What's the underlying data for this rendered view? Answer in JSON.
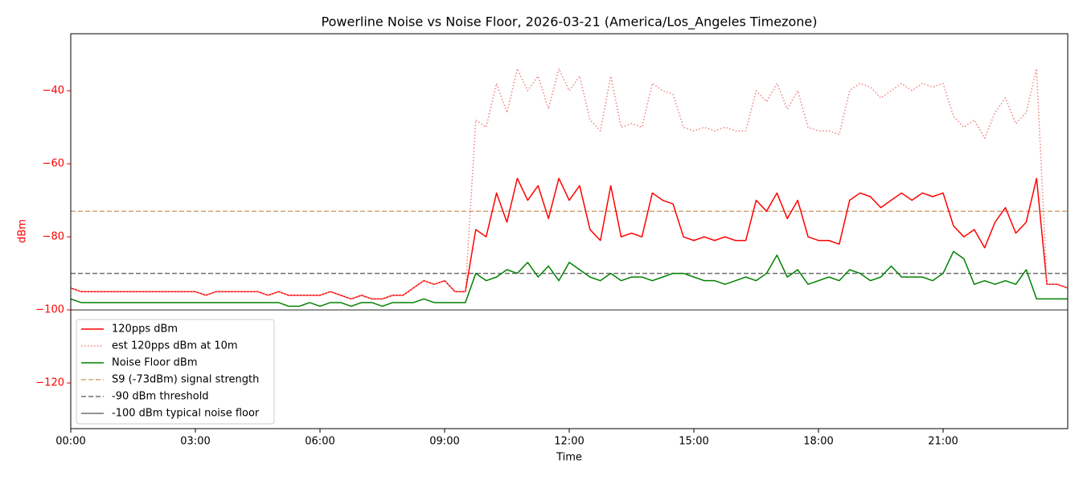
{
  "chart_data": {
    "type": "line",
    "title": "Powerline Noise vs Noise Floor, 2026-03-21 (America/Los_Angeles Timezone)",
    "x_label": "Time",
    "y_label": "dBm",
    "y_axis_color": "#ff0000",
    "xlim": [
      0,
      24
    ],
    "ylim": [
      -132.5,
      -24.4
    ],
    "xticks": [
      {
        "value": 0,
        "label": "00:00"
      },
      {
        "value": 3,
        "label": "03:00"
      },
      {
        "value": 6,
        "label": "06:00"
      },
      {
        "value": 9,
        "label": "09:00"
      },
      {
        "value": 12,
        "label": "12:00"
      },
      {
        "value": 15,
        "label": "15:00"
      },
      {
        "value": 18,
        "label": "18:00"
      },
      {
        "value": 21,
        "label": "21:00"
      }
    ],
    "yticks": [
      {
        "value": -120,
        "label": "−120"
      },
      {
        "value": -100,
        "label": "−100"
      },
      {
        "value": -80,
        "label": "−80"
      },
      {
        "value": -60,
        "label": "−60"
      },
      {
        "value": -40,
        "label": "−40"
      }
    ],
    "legend": "lower left",
    "x": [
      0,
      0.25,
      0.5,
      0.75,
      1,
      1.25,
      1.5,
      1.75,
      2,
      2.25,
      2.5,
      2.75,
      3,
      3.25,
      3.5,
      3.75,
      4,
      4.25,
      4.5,
      4.75,
      5,
      5.25,
      5.5,
      5.75,
      6,
      6.25,
      6.5,
      6.75,
      7,
      7.25,
      7.5,
      7.75,
      8,
      8.25,
      8.5,
      8.75,
      9,
      9.25,
      9.5,
      9.75,
      10,
      10.25,
      10.5,
      10.75,
      11,
      11.25,
      11.5,
      11.75,
      12,
      12.25,
      12.5,
      12.75,
      13,
      13.25,
      13.5,
      13.75,
      14,
      14.25,
      14.5,
      14.75,
      15,
      15.25,
      15.5,
      15.75,
      16,
      16.25,
      16.5,
      16.75,
      17,
      17.25,
      17.5,
      17.75,
      18,
      18.25,
      18.5,
      18.75,
      19,
      19.25,
      19.5,
      19.75,
      20,
      20.25,
      20.5,
      20.75,
      21,
      21.25,
      21.5,
      21.75,
      22,
      22.25,
      22.5,
      22.75,
      23,
      23.25,
      23.5,
      23.75,
      24
    ],
    "series": [
      {
        "name": "120pps dBm",
        "color": "#ff0000",
        "style": "solid",
        "values": [
          -94,
          -95,
          -95,
          -95,
          -95,
          -95,
          -95,
          -95,
          -95,
          -95,
          -95,
          -95,
          -95,
          -96,
          -95,
          -95,
          -95,
          -95,
          -95,
          -96,
          -95,
          -96,
          -96,
          -96,
          -96,
          -95,
          -96,
          -97,
          -96,
          -97,
          -97,
          -96,
          -96,
          -94,
          -92,
          -93,
          -92,
          -95,
          -95,
          -78,
          -80,
          -68,
          -76,
          -64,
          -70,
          -66,
          -75,
          -64,
          -70,
          -66,
          -78,
          -81,
          -66,
          -80,
          -79,
          -80,
          -68,
          -70,
          -71,
          -80,
          -81,
          -80,
          -81,
          -80,
          -81,
          -81,
          -70,
          -73,
          -68,
          -75,
          -70,
          -80,
          -81,
          -81,
          -82,
          -70,
          -68,
          -69,
          -72,
          -70,
          -68,
          -70,
          -68,
          -69,
          -68,
          -77,
          -80,
          -78,
          -83,
          -76,
          -72,
          -79,
          -76,
          -64,
          -93,
          -93,
          -94
        ]
      },
      {
        "name": "est 120pps dBm at 10m",
        "color": "#f08080",
        "style": "dotted",
        "values": [
          -94,
          -95,
          -95,
          -95,
          -95,
          -95,
          -95,
          -95,
          -95,
          -95,
          -95,
          -95,
          -95,
          -96,
          -95,
          -95,
          -95,
          -95,
          -95,
          -96,
          -95,
          -96,
          -96,
          -96,
          -96,
          -95,
          -96,
          -97,
          -96,
          -97,
          -97,
          -96,
          -96,
          -94,
          -92,
          -93,
          -92,
          -95,
          -95,
          -48,
          -50,
          -38,
          -46,
          -34,
          -40,
          -36,
          -45,
          -34,
          -40,
          -36,
          -48,
          -51,
          -36,
          -50,
          -49,
          -50,
          -38,
          -40,
          -41,
          -50,
          -51,
          -50,
          -51,
          -50,
          -51,
          -51,
          -40,
          -43,
          -38,
          -45,
          -40,
          -50,
          -51,
          -51,
          -52,
          -40,
          -38,
          -39,
          -42,
          -40,
          -38,
          -40,
          -38,
          -39,
          -38,
          -47,
          -50,
          -48,
          -53,
          -46,
          -42,
          -49,
          -46,
          -34,
          -93,
          -93,
          -94
        ]
      },
      {
        "name": "Noise Floor dBm",
        "color": "#008000",
        "style": "solid",
        "values": [
          -97,
          -98,
          -98,
          -98,
          -98,
          -98,
          -98,
          -98,
          -98,
          -98,
          -98,
          -98,
          -98,
          -98,
          -98,
          -98,
          -98,
          -98,
          -98,
          -98,
          -98,
          -99,
          -99,
          -98,
          -99,
          -98,
          -98,
          -99,
          -98,
          -98,
          -99,
          -98,
          -98,
          -98,
          -97,
          -98,
          -98,
          -98,
          -98,
          -90,
          -92,
          -91,
          -89,
          -90,
          -87,
          -91,
          -88,
          -92,
          -87,
          -89,
          -91,
          -92,
          -90,
          -92,
          -91,
          -91,
          -92,
          -91,
          -90,
          -90,
          -91,
          -92,
          -92,
          -93,
          -92,
          -91,
          -92,
          -90,
          -85,
          -91,
          -89,
          -93,
          -92,
          -91,
          -92,
          -89,
          -90,
          -92,
          -91,
          -88,
          -91,
          -91,
          -91,
          -92,
          -90,
          -84,
          -86,
          -93,
          -92,
          -93,
          -92,
          -93,
          -89,
          -97,
          -97,
          -97,
          -97
        ]
      }
    ],
    "reference_lines": [
      {
        "name": "S9 (-73dBm) signal strength",
        "color": "#d2a679",
        "style": "dashed",
        "value": -73
      },
      {
        "name": "-90 dBm threshold",
        "color": "#707070",
        "style": "dashed",
        "value": -90
      },
      {
        "name": "-100 dBm typical noise floor",
        "color": "#707070",
        "style": "solid",
        "value": -100
      }
    ]
  }
}
